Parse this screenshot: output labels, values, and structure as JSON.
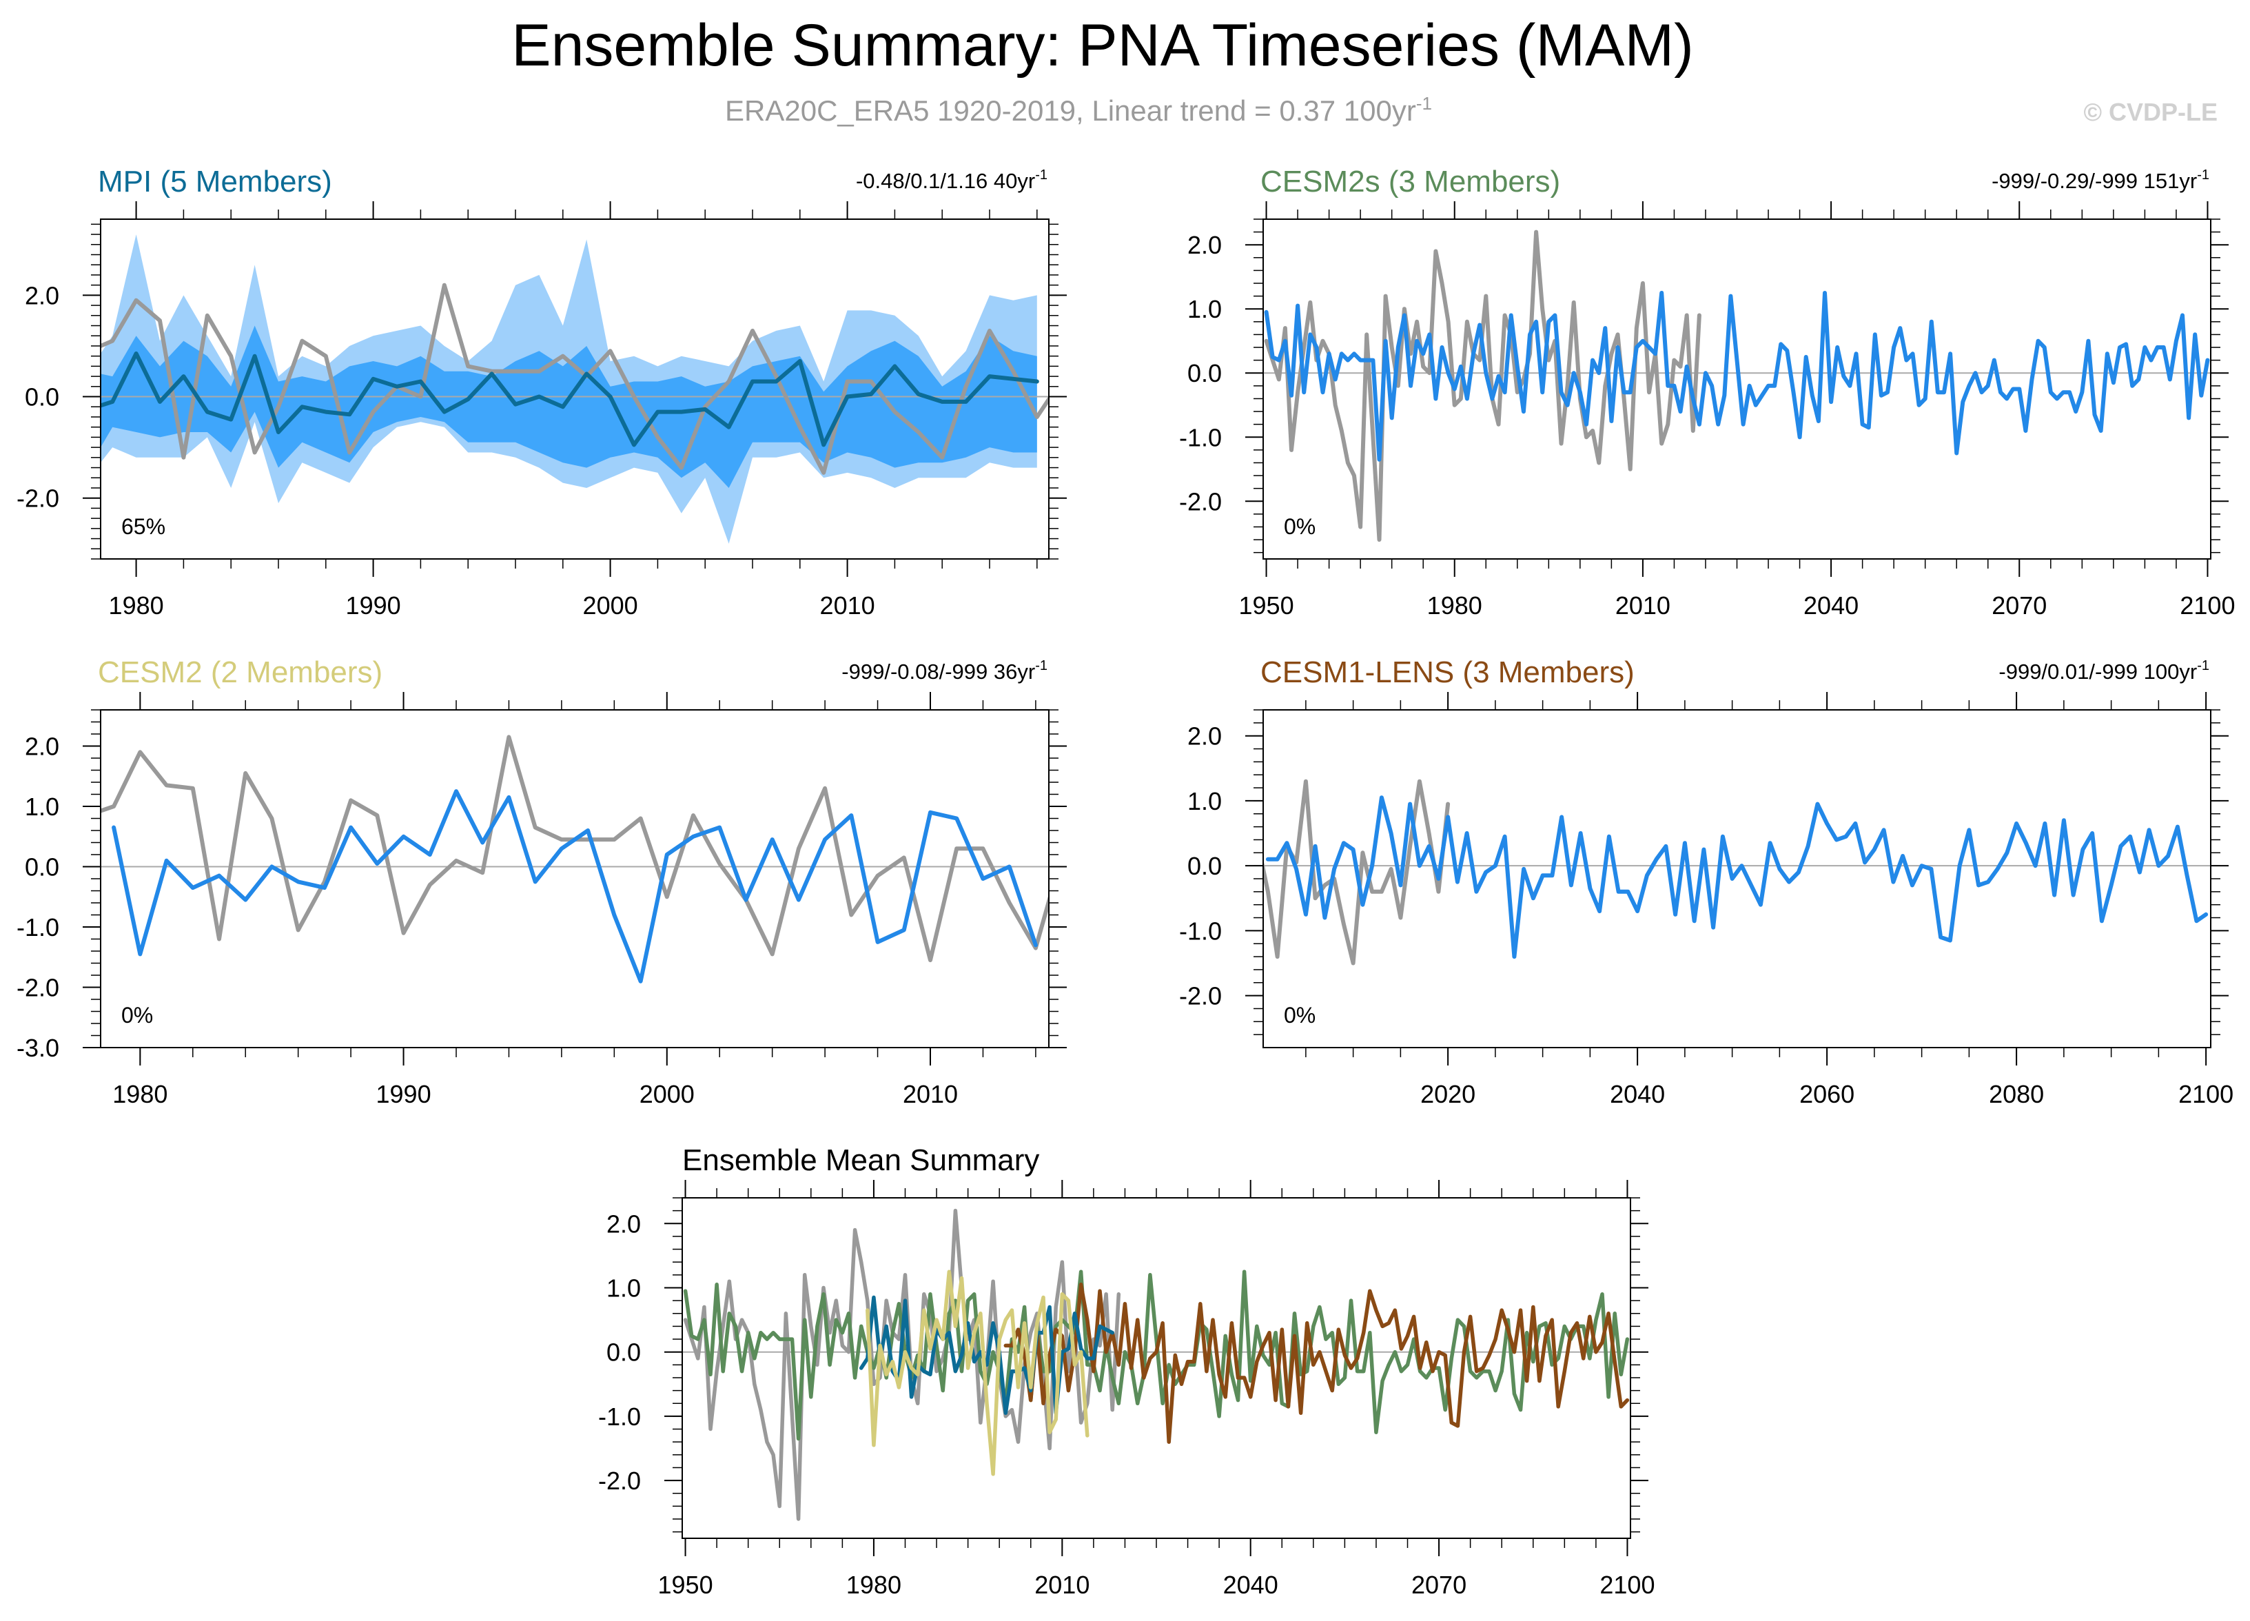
{
  "figure": {
    "title": "Ensemble Summary: PNA Timeseries (MAM)",
    "subtitle_main": "ERA20C_ERA5 1920-2019, Linear trend = 0.37 100yr",
    "subtitle_sup": "-1",
    "copyright": "© CVDP-LE",
    "colors": {
      "obs": "#999999",
      "member": "#2288e8",
      "mpi": "#0c6c96",
      "cesm2s": "#5b8c5a",
      "cesm2": "#d4cc7a",
      "lens": "#8a4a14",
      "band_outer": "#9fd0fb",
      "band_inner": "#3fa6fb",
      "zero_line": "#aaaaaa"
    }
  },
  "chart_data": [
    {
      "id": "mpi",
      "type": "area",
      "title": "MPI (5 Members)",
      "stats": "-0.48/0.1/1.16 40yr",
      "stats_sup": "-1",
      "percent_label": "65%",
      "xlim": [
        1978.5,
        2018.5
      ],
      "ylim": [
        -3.2,
        3.5
      ],
      "yticks": [
        -2,
        0,
        2
      ],
      "ytick_labels": [
        "-2.0",
        "0.0",
        "2.0"
      ],
      "xticks": [
        1980,
        1990,
        2000,
        2010
      ],
      "xtick_labels": [
        "1980",
        "1990",
        "2000",
        "2010"
      ],
      "x_start": 1978,
      "band_outer": {
        "upper": [
          0.5,
          1.2,
          3.2,
          1.1,
          2.0,
          1.2,
          0.4,
          2.6,
          0.4,
          0.8,
          0.6,
          1.0,
          1.2,
          1.3,
          1.4,
          1.0,
          0.7,
          1.1,
          2.2,
          2.4,
          1.4,
          3.1,
          0.7,
          0.8,
          0.6,
          0.8,
          0.7,
          0.6,
          1.1,
          1.3,
          1.4,
          0.3,
          1.7,
          1.7,
          1.6,
          1.2,
          0.4,
          0.9,
          2.0,
          1.9,
          2.0
        ],
        "lower": [
          -1.6,
          -1.0,
          -1.2,
          -1.2,
          -1.2,
          -0.8,
          -1.8,
          -0.5,
          -2.1,
          -1.3,
          -1.5,
          -1.7,
          -1.0,
          -0.6,
          -0.5,
          -0.6,
          -1.1,
          -1.1,
          -1.2,
          -1.4,
          -1.7,
          -1.8,
          -1.6,
          -1.4,
          -1.5,
          -2.3,
          -1.6,
          -2.9,
          -1.2,
          -1.2,
          -1.1,
          -1.6,
          -1.5,
          -1.6,
          -1.8,
          -1.6,
          -1.6,
          -1.6,
          -1.3,
          -1.4,
          -1.4
        ]
      },
      "band_inner": {
        "upper": [
          0.5,
          0.4,
          1.2,
          0.6,
          1.1,
          0.8,
          0.2,
          1.4,
          0.3,
          0.4,
          0.3,
          0.6,
          0.7,
          0.6,
          0.8,
          0.5,
          0.5,
          0.4,
          0.7,
          0.9,
          0.6,
          1.0,
          0.2,
          0.3,
          0.3,
          0.4,
          0.2,
          0.3,
          0.6,
          0.7,
          0.8,
          0.1,
          0.6,
          0.9,
          1.1,
          0.8,
          0.2,
          0.5,
          1.2,
          0.9,
          0.8
        ],
        "lower": [
          -1.4,
          -0.6,
          -0.7,
          -0.8,
          -0.7,
          -0.7,
          -1.1,
          -0.3,
          -1.4,
          -0.9,
          -1.1,
          -1.3,
          -0.7,
          -0.5,
          -0.4,
          -0.5,
          -0.9,
          -0.9,
          -0.9,
          -1.1,
          -1.3,
          -1.4,
          -1.2,
          -1.1,
          -1.2,
          -1.6,
          -1.3,
          -1.8,
          -0.9,
          -0.9,
          -0.9,
          -1.3,
          -1.1,
          -1.2,
          -1.4,
          -1.3,
          -1.3,
          -1.2,
          -1.0,
          -1.1,
          -1.1
        ]
      },
      "series": [
        {
          "name": "ERA20C_ERA5",
          "role": "obs",
          "x_start": 1978,
          "values": [
            0.9,
            1.1,
            1.9,
            1.5,
            -1.2,
            1.6,
            0.8,
            -1.1,
            -0.2,
            1.1,
            0.8,
            -1.1,
            -0.3,
            0.2,
            0.0,
            2.2,
            0.6,
            0.5,
            0.5,
            0.5,
            0.8,
            0.4,
            0.9,
            0.0,
            -0.8,
            -1.4,
            -0.2,
            0.3,
            1.3,
            0.4,
            -0.6,
            -1.5,
            0.3,
            0.3,
            -0.3,
            -0.7,
            -1.2,
            0.2,
            1.3,
            0.5,
            -0.4,
            0.3
          ]
        },
        {
          "name": "Ensemble mean",
          "role": "mpi",
          "x_start": 1978,
          "values": [
            -0.25,
            -0.1,
            0.85,
            -0.1,
            0.4,
            -0.3,
            -0.45,
            0.8,
            -0.7,
            -0.2,
            -0.3,
            -0.35,
            0.35,
            0.2,
            0.3,
            -0.3,
            -0.05,
            0.45,
            -0.15,
            0.0,
            -0.2,
            0.45,
            0.0,
            -0.95,
            -0.3,
            -0.3,
            -0.25,
            -0.6,
            0.3,
            0.3,
            0.7,
            -0.95,
            0.0,
            0.05,
            0.6,
            0.05,
            -0.1,
            -0.1,
            0.4,
            0.35,
            0.3
          ]
        }
      ]
    },
    {
      "id": "cesm2s",
      "type": "line",
      "title": "CESM2s (3 Members)",
      "stats": "-999/-0.29/-999 151yr",
      "stats_sup": "-1",
      "percent_label": "0%",
      "xlim": [
        1949.5,
        2100.5
      ],
      "ylim": [
        -2.9,
        2.4
      ],
      "yticks": [
        -2,
        -1,
        0,
        1,
        2
      ],
      "ytick_labels": [
        "-2.0",
        "-1.0",
        "0.0",
        "1.0",
        "2.0"
      ],
      "xticks": [
        1950,
        1980,
        2010,
        2040,
        2070,
        2100
      ],
      "xtick_labels": [
        "1950",
        "1980",
        "2010",
        "2040",
        "2070",
        "2100"
      ],
      "series": [
        {
          "name": "ERA20C_ERA5",
          "role": "obs",
          "x_start": 1950,
          "values": [
            0.5,
            0.2,
            -0.1,
            0.7,
            -1.2,
            -0.3,
            0.4,
            1.1,
            0.2,
            0.5,
            0.3,
            -0.5,
            -0.9,
            -1.4,
            -1.6,
            -2.4,
            0.6,
            -1.0,
            -2.6,
            1.2,
            0.4,
            -0.2,
            1.0,
            0.3,
            0.8,
            0.1,
            0.0,
            1.9,
            1.4,
            0.8,
            -0.5,
            -0.4,
            0.8,
            0.3,
            0.2,
            1.2,
            -0.4,
            -0.8,
            0.9,
            0.6,
            -0.3,
            -0.1,
            0.3,
            2.2,
            1.0,
            0.2,
            0.5,
            -1.1,
            -0.2,
            1.1,
            -0.4,
            -1.0,
            -0.9,
            -1.4,
            -0.2,
            0.3,
            0.6,
            -0.4,
            -1.5,
            0.7,
            1.4,
            -0.3,
            0.3,
            -1.1,
            -0.8,
            0.2,
            0.1,
            0.9,
            -0.9,
            0.9
          ]
        },
        {
          "name": "Ensemble mean",
          "role": "member",
          "x_start": 1950,
          "values": [
            0.95,
            0.25,
            0.2,
            0.5,
            -0.35,
            1.05,
            -0.3,
            0.6,
            0.4,
            -0.3,
            0.3,
            -0.1,
            0.3,
            0.2,
            0.3,
            0.2,
            0.2,
            0.2,
            -1.35,
            0.5,
            -0.7,
            0.4,
            0.9,
            -0.2,
            0.5,
            0.3,
            0.6,
            -0.4,
            0.4,
            0.0,
            -0.25,
            0.1,
            -0.4,
            0.3,
            0.75,
            0.0,
            -0.4,
            -0.05,
            -0.3,
            0.9,
            0.1,
            -0.6,
            0.6,
            0.8,
            -0.3,
            0.8,
            0.9,
            -0.3,
            -0.5,
            0.0,
            -0.3,
            -0.8,
            0.2,
            0.0,
            0.7,
            -0.75,
            0.4,
            -0.3,
            -0.3,
            0.4,
            0.5,
            0.4,
            0.3,
            1.25,
            -0.2,
            -0.2,
            -0.6,
            0.1,
            -0.4,
            -0.8,
            0.0,
            -0.2,
            -0.8,
            -0.35,
            1.2,
            0.2,
            -0.8,
            -0.2,
            -0.5,
            -0.35,
            -0.2,
            -0.2,
            0.45,
            0.35,
            -0.3,
            -1.0,
            0.25,
            -0.35,
            -0.75,
            1.25,
            -0.45,
            0.4,
            -0.05,
            -0.2,
            0.3,
            -0.8,
            -0.85,
            0.6,
            -0.35,
            -0.3,
            0.4,
            0.7,
            0.2,
            0.3,
            -0.5,
            -0.4,
            0.8,
            -0.3,
            -0.3,
            0.3,
            -1.25,
            -0.45,
            -0.2,
            0.0,
            -0.3,
            -0.2,
            0.2,
            -0.3,
            -0.4,
            -0.25,
            -0.25,
            -0.9,
            -0.1,
            0.5,
            0.4,
            -0.3,
            -0.4,
            -0.3,
            -0.3,
            -0.6,
            -0.3,
            0.5,
            -0.65,
            -0.9,
            0.3,
            -0.15,
            0.4,
            0.45,
            -0.2,
            -0.1,
            0.4,
            0.2,
            0.4,
            0.4,
            -0.1,
            0.5,
            0.9,
            -0.7,
            0.6,
            -0.35,
            0.2
          ]
        }
      ]
    },
    {
      "id": "cesm2",
      "type": "line",
      "title": "CESM2 (2 Members)",
      "stats": "-999/-0.08/-999 36yr",
      "stats_sup": "-1",
      "percent_label": "0%",
      "xlim": [
        1978.5,
        2014.5
      ],
      "ylim": [
        -3.0,
        2.6
      ],
      "yticks": [
        -3,
        -2,
        -1,
        0,
        1,
        2
      ],
      "ytick_labels": [
        "-3.0",
        "-2.0",
        "-1.0",
        "0.0",
        "1.0",
        "2.0"
      ],
      "xticks": [
        1980,
        1990,
        2000,
        2010
      ],
      "xtick_labels": [
        "1980",
        "1990",
        "2000",
        "2010"
      ],
      "series": [
        {
          "name": "ERA20C_ERA5",
          "role": "obs",
          "x_start": 1978,
          "values": [
            0.85,
            1.0,
            1.9,
            1.35,
            1.3,
            -1.2,
            1.55,
            0.8,
            -1.05,
            -0.25,
            1.1,
            0.85,
            -1.1,
            -0.3,
            0.1,
            -0.1,
            2.15,
            0.65,
            0.45,
            0.45,
            0.45,
            0.8,
            -0.5,
            0.85,
            0.05,
            -0.55,
            -1.45,
            0.3,
            1.3,
            -0.8,
            -0.15,
            0.15,
            -1.55,
            0.3,
            0.3,
            -0.6,
            -1.35,
            0.2,
            0.0
          ]
        },
        {
          "name": "Ensemble mean",
          "role": "member",
          "x_start": 1979,
          "values": [
            0.65,
            -1.45,
            0.1,
            -0.35,
            -0.15,
            -0.55,
            0.0,
            -0.25,
            -0.35,
            0.65,
            0.05,
            0.5,
            0.2,
            1.25,
            0.4,
            1.15,
            -0.25,
            0.3,
            0.6,
            -0.8,
            -1.9,
            0.2,
            0.5,
            0.65,
            -0.55,
            0.45,
            -0.55,
            0.45,
            0.85,
            -1.25,
            -1.05,
            0.9,
            0.8,
            -0.2,
            0.0,
            -1.3
          ]
        }
      ]
    },
    {
      "id": "cesm1-lens",
      "type": "line",
      "title": "CESM1-LENS (3 Members)",
      "stats": "-999/0.01/-999 100yr",
      "stats_sup": "-1",
      "percent_label": "0%",
      "xlim": [
        2000.5,
        2100.5
      ],
      "ylim": [
        -2.8,
        2.4
      ],
      "yticks": [
        -2,
        -1,
        0,
        1,
        2
      ],
      "ytick_labels": [
        "-2.0",
        "-1.0",
        "0.0",
        "1.0",
        "2.0"
      ],
      "xticks": [
        2020,
        2040,
        2060,
        2080,
        2100
      ],
      "xtick_labels": [
        "2020",
        "2040",
        "2060",
        "2080",
        "2100"
      ],
      "series": [
        {
          "name": "ERA20C_ERA5",
          "role": "obs",
          "x_start": 2000,
          "values": [
            0.3,
            -0.4,
            -1.4,
            0.3,
            0.05,
            1.3,
            -0.5,
            -0.3,
            -0.2,
            -0.9,
            -1.5,
            0.2,
            -0.4,
            -0.4,
            -0.05,
            -0.8,
            0.3,
            1.3,
            0.5,
            -0.4,
            0.95
          ]
        },
        {
          "name": "Ensemble mean",
          "role": "member",
          "x_start": 2001,
          "values": [
            0.1,
            0.1,
            0.35,
            -0.05,
            -0.75,
            0.3,
            -0.8,
            -0.05,
            0.35,
            0.25,
            -0.6,
            0.0,
            1.05,
            0.5,
            -0.3,
            0.95,
            0.0,
            0.3,
            -0.2,
            0.75,
            -0.25,
            0.5,
            -0.4,
            -0.1,
            0.0,
            0.45,
            -1.4,
            -0.05,
            -0.5,
            -0.15,
            -0.15,
            0.75,
            -0.3,
            0.5,
            -0.35,
            -0.7,
            0.45,
            -0.4,
            -0.4,
            -0.7,
            -0.15,
            0.1,
            0.3,
            -0.75,
            0.35,
            -0.85,
            0.25,
            -0.95,
            0.45,
            -0.2,
            0.0,
            -0.3,
            -0.6,
            0.35,
            -0.05,
            -0.25,
            -0.1,
            0.3,
            0.95,
            0.65,
            0.4,
            0.45,
            0.65,
            0.05,
            0.25,
            0.55,
            -0.25,
            0.15,
            -0.3,
            0.0,
            -0.05,
            -1.1,
            -1.15,
            0.0,
            0.55,
            -0.3,
            -0.25,
            -0.05,
            0.2,
            0.65,
            0.35,
            0.0,
            0.65,
            -0.45,
            0.7,
            -0.45,
            0.25,
            0.5,
            -0.85,
            -0.3,
            0.3,
            0.45,
            -0.1,
            0.55,
            0.0,
            0.15,
            0.6,
            -0.15,
            -0.85,
            -0.75
          ]
        }
      ]
    },
    {
      "id": "ensemble-mean",
      "type": "line",
      "title": "Ensemble Mean Summary",
      "xlim": [
        1949.5,
        2100.5
      ],
      "ylim": [
        -2.9,
        2.4
      ],
      "yticks": [
        -2,
        -1,
        0,
        1,
        2
      ],
      "ytick_labels": [
        "-2.0",
        "-1.0",
        "0.0",
        "1.0",
        "2.0"
      ],
      "xticks": [
        1950,
        1980,
        2010,
        2040,
        2070,
        2100
      ],
      "xtick_labels": [
        "1950",
        "1980",
        "2010",
        "2040",
        "2070",
        "2100"
      ],
      "series": [
        {
          "name": "ERA20C_ERA5",
          "role": "obs",
          "source": "cesm2s",
          "series_index": 0
        },
        {
          "name": "CESM2s",
          "role": "cesm2s",
          "source": "cesm2s",
          "series_index": 1
        },
        {
          "name": "CESM1-LENS",
          "role": "lens",
          "source": "cesm1-lens",
          "series_index": 1
        },
        {
          "name": "MPI",
          "role": "mpi",
          "source": "mpi",
          "series_index": 1
        },
        {
          "name": "CESM2",
          "role": "cesm2",
          "source": "cesm2",
          "series_index": 1
        }
      ]
    }
  ]
}
